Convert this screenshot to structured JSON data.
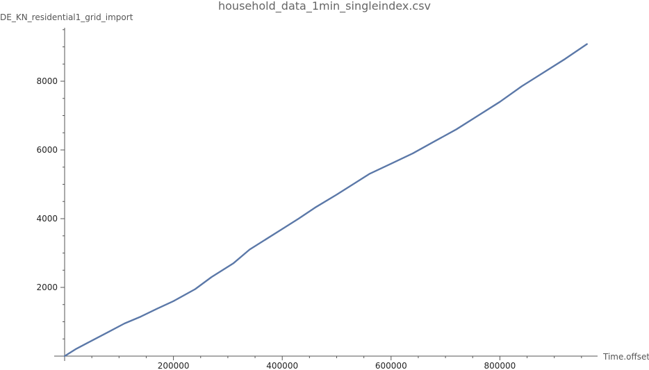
{
  "chart_data": {
    "type": "line",
    "title": "household_data_1min_singleindex.csv",
    "xlabel": "Time.offset",
    "ylabel": "DE_KN_residential1_grid_import",
    "xlim": [
      0,
      1000000
    ],
    "ylim": [
      0,
      9600
    ],
    "x_ticks": [
      200000,
      400000,
      600000,
      800000
    ],
    "x_tick_labels": [
      "200000",
      "400000",
      "600000",
      "800000"
    ],
    "y_ticks": [
      2000,
      4000,
      6000,
      8000
    ],
    "y_tick_labels": [
      "2000",
      "4000",
      "6000",
      "8000"
    ],
    "grid": false,
    "series": [
      {
        "color": "#5b78a8",
        "x": [
          0,
          20000,
          50000,
          80000,
          110000,
          140000,
          170000,
          200000,
          240000,
          270000,
          310000,
          340000,
          370000,
          400000,
          430000,
          460000,
          500000,
          530000,
          560000,
          600000,
          640000,
          680000,
          720000,
          760000,
          800000,
          840000,
          880000,
          920000,
          960000
        ],
        "y": [
          0,
          200,
          450,
          700,
          950,
          1150,
          1380,
          1600,
          1950,
          2300,
          2700,
          3100,
          3400,
          3700,
          4000,
          4320,
          4700,
          5000,
          5300,
          5600,
          5900,
          6250,
          6600,
          7000,
          7400,
          7850,
          8250,
          8650,
          9080
        ]
      }
    ]
  }
}
